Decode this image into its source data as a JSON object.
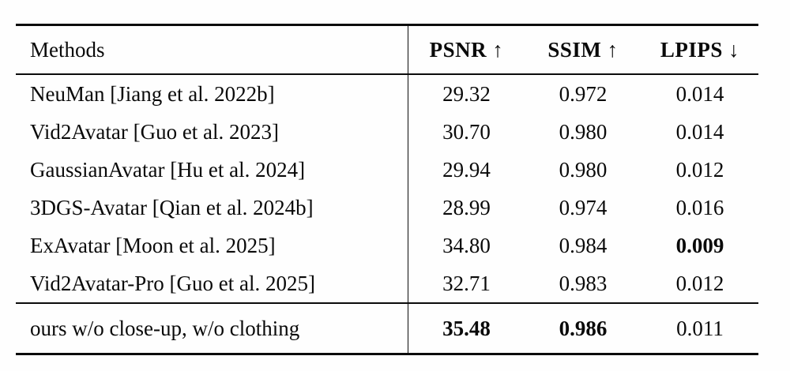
{
  "page": {
    "background": "#fefefe",
    "text_color": "#0a0a0a",
    "rule_color": "#0b0b0b"
  },
  "table": {
    "header": {
      "methods": "Methods",
      "psnr": "PSNR ↑",
      "ssim": "SSIM ↑",
      "lpips": "LPIPS ↓"
    },
    "rows": [
      {
        "method": "NeuMan [Jiang et al. 2022b]",
        "psnr": "29.32",
        "ssim": "0.972",
        "lpips": "0.014"
      },
      {
        "method": "Vid2Avatar [Guo et al. 2023]",
        "psnr": "30.70",
        "ssim": "0.980",
        "lpips": "0.014"
      },
      {
        "method": "GaussianAvatar [Hu et al. 2024]",
        "psnr": "29.94",
        "ssim": "0.980",
        "lpips": "0.012"
      },
      {
        "method": "3DGS-Avatar [Qian et al. 2024b]",
        "psnr": "28.99",
        "ssim": "0.974",
        "lpips": "0.016"
      },
      {
        "method": "ExAvatar [Moon et al. 2025]",
        "psnr": "34.80",
        "ssim": "0.984",
        "lpips": "0.009"
      },
      {
        "method": "Vid2Avatar-Pro [Guo et al. 2025]",
        "psnr": "32.71",
        "ssim": "0.983",
        "lpips": "0.012"
      }
    ],
    "ours": {
      "method": "ours w/o close-up, w/o clothing",
      "psnr": "35.48",
      "ssim": "0.986",
      "lpips": "0.011"
    }
  },
  "chart_data": {
    "type": "table",
    "title": "",
    "columns": [
      "Methods",
      "PSNR ↑",
      "SSIM ↑",
      "LPIPS ↓"
    ],
    "rows": [
      [
        "NeuMan [Jiang et al. 2022b]",
        29.32,
        0.972,
        0.014
      ],
      [
        "Vid2Avatar [Guo et al. 2023]",
        30.7,
        0.98,
        0.014
      ],
      [
        "GaussianAvatar [Hu et al. 2024]",
        29.94,
        0.98,
        0.012
      ],
      [
        "3DGS-Avatar [Qian et al. 2024b]",
        28.99,
        0.974,
        0.016
      ],
      [
        "ExAvatar [Moon et al. 2025]",
        34.8,
        0.984,
        0.009
      ],
      [
        "Vid2Avatar-Pro [Guo et al. 2025]",
        32.71,
        0.983,
        0.012
      ],
      [
        "ours w/o close-up, w/o clothing",
        35.48,
        0.986,
        0.011
      ]
    ],
    "bold_cells": [
      [
        4,
        3
      ],
      [
        6,
        1
      ],
      [
        6,
        2
      ]
    ]
  }
}
